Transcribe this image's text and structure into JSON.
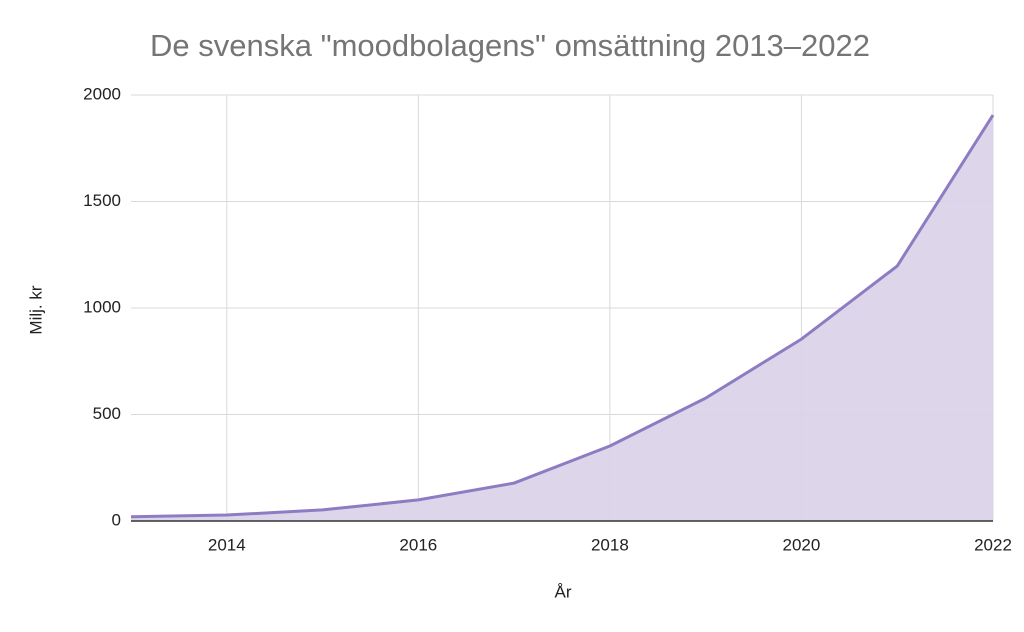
{
  "chart_data": {
    "type": "area",
    "title": "De svenska \"moodbolagens\" omsättning 2013–2022",
    "x_label": "År",
    "y_label": "Milj. kr",
    "x": [
      2013,
      2014,
      2015,
      2016,
      2017,
      2018,
      2019,
      2020,
      2021,
      2022
    ],
    "values": [
      20,
      28,
      52,
      99,
      178,
      352,
      577,
      854,
      1197,
      1906
    ],
    "color": "#8e7cc3",
    "fill": "#d9d2e9",
    "xlim": [
      2013,
      2022
    ],
    "xticks": [
      2014,
      2016,
      2018,
      2020,
      2022
    ],
    "ylim": [
      0,
      2000
    ],
    "yticks": [
      0,
      500,
      1000,
      1500,
      2000
    ],
    "grid": true
  }
}
